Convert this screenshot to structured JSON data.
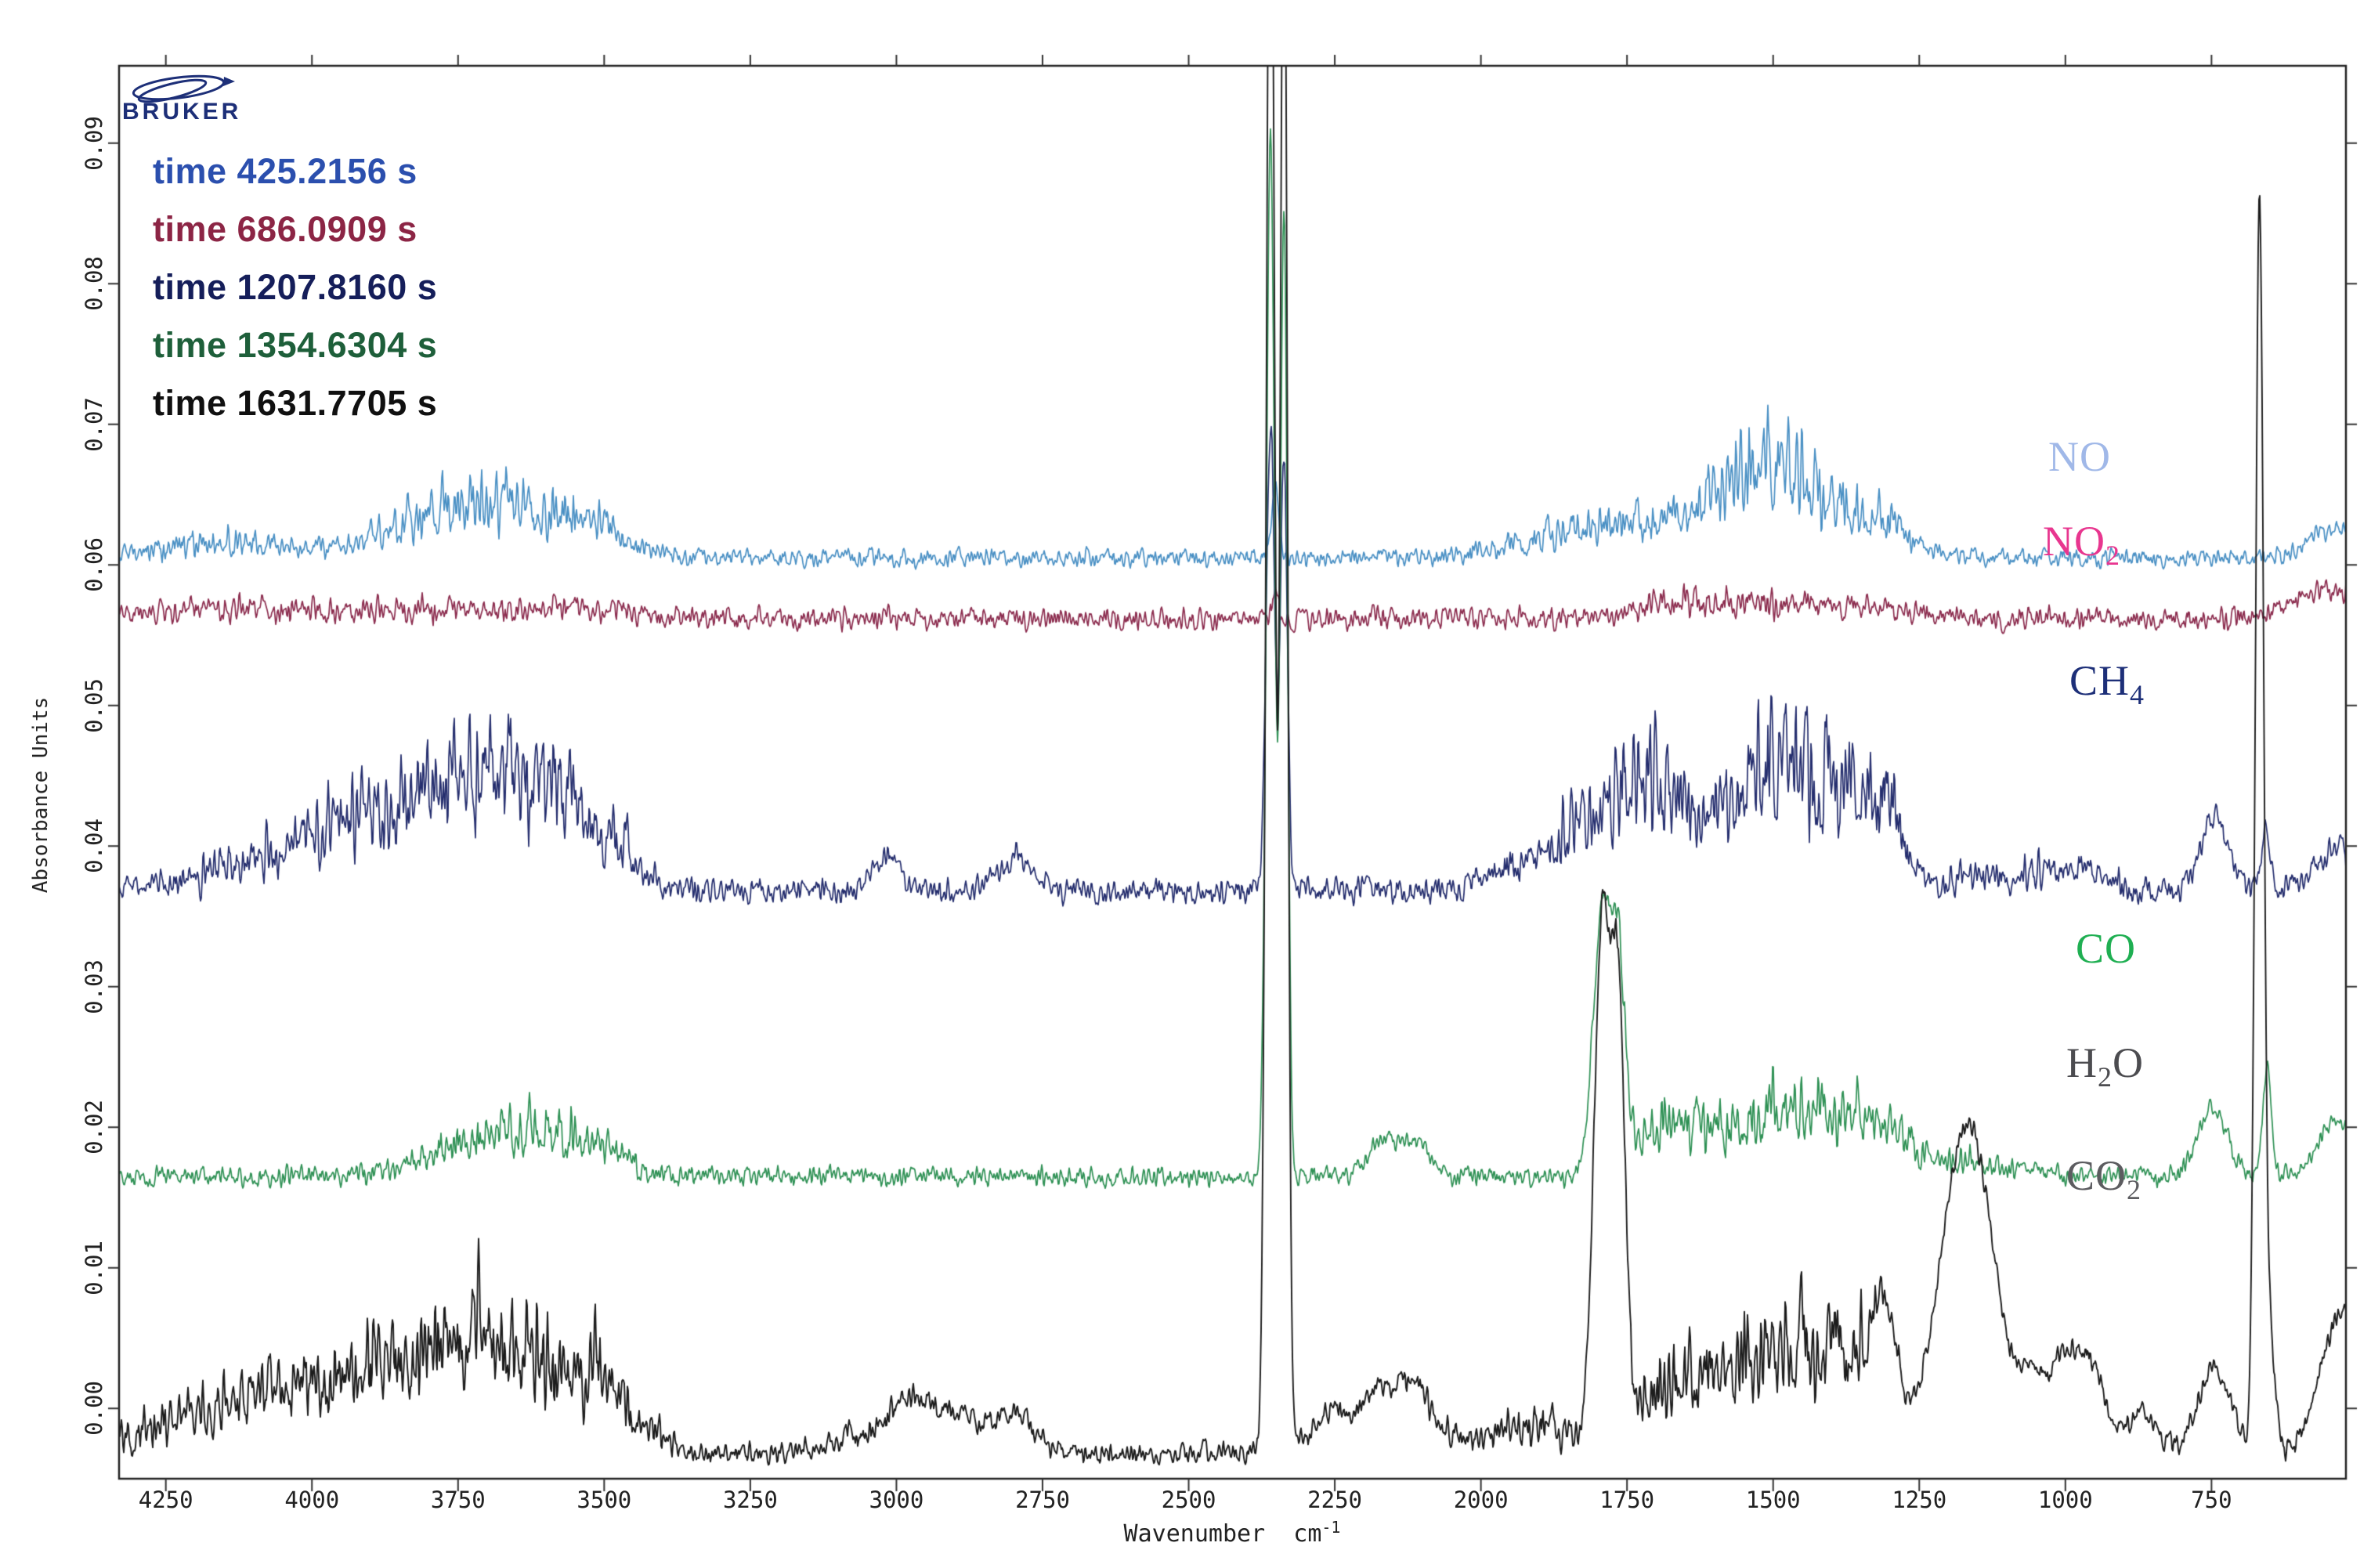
{
  "header": {
    "brand": "BRUKER"
  },
  "axis": {
    "x_label": "Wavenumber  cm",
    "x_label_sup": "-1",
    "y_label": "Absorbance Units"
  },
  "species_labels": [
    {
      "label": "NO",
      "color": "#a0b8e8"
    },
    {
      "label": "NO2",
      "color": "#e8368f"
    },
    {
      "label": "CH4",
      "color": "#1d2f78"
    },
    {
      "label": "CO",
      "color": "#1faf52"
    },
    {
      "label": "H2O",
      "color": "#4c4c50"
    },
    {
      "label": "CO2",
      "color": "#5c5c60"
    }
  ],
  "chart_data": {
    "type": "line",
    "xlabel": "Wavenumber cm^-1",
    "ylabel": "Absorbance Units",
    "x_axis_reversed": true,
    "grid": false,
    "legend_position": "top-left",
    "xlim": [
      4330,
      520
    ],
    "ylim": [
      -0.005,
      0.0955
    ],
    "xticks": [
      4250,
      4000,
      3750,
      3500,
      3250,
      3000,
      2750,
      2500,
      2250,
      2000,
      1750,
      1500,
      1250,
      1000,
      750
    ],
    "yticks": [
      0.0,
      0.01,
      0.02,
      0.03,
      0.04,
      0.05,
      0.06,
      0.07,
      0.08,
      0.09
    ],
    "series": [
      {
        "name": "time 425.2156 s",
        "species": "NO",
        "color": "#4a90c4",
        "label_color": "#2b4fae",
        "baseline": 0.0605,
        "noise": 0.0009,
        "peaks": [
          [
            2352,
            6,
            0.005
          ],
          [
            540,
            45,
            0.002
          ]
        ],
        "noisy_bands": [
          [
            4150,
            120,
            0.002
          ],
          [
            3780,
            100,
            0.005
          ],
          [
            3640,
            90,
            0.006
          ],
          [
            3500,
            50,
            0.003
          ],
          [
            1850,
            100,
            0.003
          ],
          [
            1700,
            80,
            0.004
          ],
          [
            1560,
            70,
            0.007
          ],
          [
            1490,
            60,
            0.009
          ],
          [
            1380,
            70,
            0.005
          ],
          [
            1300,
            40,
            0.003
          ]
        ]
      },
      {
        "name": "time 686.0909 s",
        "species": "NO2",
        "color": "#8c2d4f",
        "label_color": "#8c2545",
        "baseline": 0.0562,
        "noise": 0.0011,
        "peaks": [
          [
            2352,
            5,
            0.002
          ],
          [
            555,
            50,
            0.002
          ]
        ],
        "noisy_bands": [
          [
            4150,
            150,
            0.0012
          ],
          [
            3800,
            150,
            0.0012
          ],
          [
            3550,
            100,
            0.001
          ],
          [
            1620,
            100,
            0.0022
          ],
          [
            1430,
            90,
            0.0015
          ],
          [
            1300,
            60,
            0.001
          ]
        ]
      },
      {
        "name": "time 1207.8160 s",
        "species": "CH4",
        "color": "#252e6e",
        "label_color": "#151e5a",
        "baseline": 0.0368,
        "noise": 0.0013,
        "peaks": [
          [
            3016,
            22,
            0.0025
          ],
          [
            2800,
            28,
            0.0025
          ],
          [
            2360,
            7,
            0.0335
          ],
          [
            2337,
            6,
            0.0305
          ],
          [
            745,
            22,
            0.0055
          ],
          [
            658,
            7,
            0.004
          ],
          [
            530,
            40,
            0.003
          ]
        ],
        "noisy_bands": [
          [
            4080,
            110,
            0.004
          ],
          [
            3920,
            90,
            0.006
          ],
          [
            3800,
            90,
            0.0085
          ],
          [
            3680,
            80,
            0.009
          ],
          [
            3590,
            70,
            0.0095
          ],
          [
            3490,
            50,
            0.005
          ],
          [
            1950,
            50,
            0.003
          ],
          [
            1800,
            70,
            0.009
          ],
          [
            1710,
            70,
            0.01
          ],
          [
            1620,
            50,
            0.006
          ],
          [
            1520,
            50,
            0.013
          ],
          [
            1440,
            60,
            0.011
          ],
          [
            1360,
            50,
            0.009
          ],
          [
            1300,
            35,
            0.007
          ],
          [
            1150,
            50,
            0.002
          ],
          [
            1040,
            50,
            0.0025
          ],
          [
            960,
            40,
            0.002
          ]
        ]
      },
      {
        "name": "time 1354.6304 s",
        "species": "CO",
        "color": "#2f9155",
        "label_color": "#1e5f3a",
        "baseline": 0.0165,
        "noise": 0.001,
        "peaks": [
          [
            2360,
            7,
            0.075
          ],
          [
            2337,
            6,
            0.069
          ],
          [
            2170,
            25,
            0.0025
          ],
          [
            2112,
            25,
            0.0025
          ],
          [
            1792,
            15,
            0.019
          ],
          [
            1764,
            11,
            0.013
          ],
          [
            748,
            24,
            0.005
          ],
          [
            655,
            7,
            0.008
          ],
          [
            535,
            30,
            0.004
          ]
        ],
        "noisy_bands": [
          [
            3730,
            80,
            0.004
          ],
          [
            3600,
            70,
            0.0055
          ],
          [
            3500,
            40,
            0.003
          ],
          [
            1700,
            60,
            0.0045
          ],
          [
            1580,
            100,
            0.0055
          ],
          [
            1460,
            80,
            0.0055
          ],
          [
            1360,
            60,
            0.005
          ],
          [
            1290,
            40,
            0.004
          ],
          [
            1160,
            60,
            0.002
          ]
        ]
      },
      {
        "name": "time 1631.7705 s",
        "species": "H2O+CO2",
        "color": "#1c1c1c",
        "label_color": "#101010",
        "baseline": -0.0032,
        "noise": 0.0011,
        "peaks": [
          [
            2965,
            45,
            0.0035
          ],
          [
            2880,
            30,
            0.002
          ],
          [
            2800,
            32,
            0.003
          ],
          [
            2360,
            7,
            0.125
          ],
          [
            2337,
            6,
            0.118
          ],
          [
            2250,
            38,
            0.003
          ],
          [
            2170,
            26,
            0.004
          ],
          [
            2112,
            26,
            0.004
          ],
          [
            1792,
            14,
            0.037
          ],
          [
            1764,
            11,
            0.029
          ],
          [
            1310,
            22,
            0.008
          ],
          [
            1167,
            45,
            0.0235
          ],
          [
            1060,
            22,
            0.004
          ],
          [
            1000,
            28,
            0.007
          ],
          [
            950,
            22,
            0.005
          ],
          [
            870,
            25,
            0.003
          ],
          [
            745,
            28,
            0.006
          ],
          [
            668,
            7,
            0.089
          ],
          [
            650,
            9,
            0.008
          ],
          [
            528,
            35,
            0.01
          ]
        ],
        "noisy_bands": [
          [
            4180,
            130,
            0.005
          ],
          [
            4000,
            110,
            0.006
          ],
          [
            3850,
            100,
            0.007
          ],
          [
            3730,
            90,
            0.009
          ],
          [
            3620,
            90,
            0.01
          ],
          [
            3500,
            60,
            0.006
          ],
          [
            3050,
            70,
            0.002
          ],
          [
            2050,
            70,
            0.002
          ],
          [
            1900,
            55,
            0.004
          ],
          [
            1690,
            60,
            0.007
          ],
          [
            1600,
            70,
            0.006
          ],
          [
            1510,
            65,
            0.008
          ],
          [
            1430,
            65,
            0.009
          ],
          [
            1350,
            45,
            0.007
          ]
        ]
      }
    ]
  }
}
